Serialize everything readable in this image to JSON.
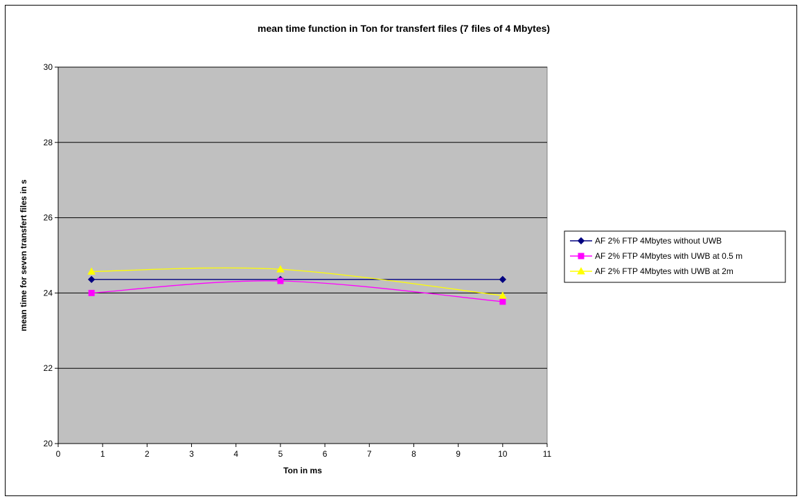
{
  "chart_data": {
    "type": "line",
    "title": "mean time function in Ton for transfert files (7 files of 4 Mbytes)",
    "xlabel": "Ton in ms",
    "ylabel": "mean time for seven transfert files  in s",
    "xlim": [
      0,
      11
    ],
    "ylim": [
      20,
      30
    ],
    "xticks": [
      0,
      1,
      2,
      3,
      4,
      5,
      6,
      7,
      8,
      9,
      10,
      11
    ],
    "yticks": [
      20,
      22,
      24,
      26,
      28,
      30
    ],
    "grid": "horizontal",
    "plot_background": "#c0c0c0",
    "legend_position": "right",
    "series": [
      {
        "name": "AF 2% FTP  4Mbytes  without UWB",
        "color": "#000080",
        "marker": "diamond",
        "smooth": false,
        "x": [
          0.75,
          5,
          10
        ],
        "y": [
          24.36,
          24.36,
          24.36
        ]
      },
      {
        "name": "AF 2% FTP  4Mbytes  with UWB at 0.5 m",
        "color": "#ff00ff",
        "marker": "square",
        "smooth": true,
        "x": [
          0.75,
          5,
          10
        ],
        "y": [
          24.0,
          24.32,
          23.77
        ]
      },
      {
        "name": "AF 2% FTP  4Mbytes with UWB at  2m",
        "color": "#ffff00",
        "marker": "triangle",
        "smooth": true,
        "x": [
          0.75,
          5,
          10
        ],
        "y": [
          24.57,
          24.63,
          23.93
        ]
      }
    ]
  }
}
